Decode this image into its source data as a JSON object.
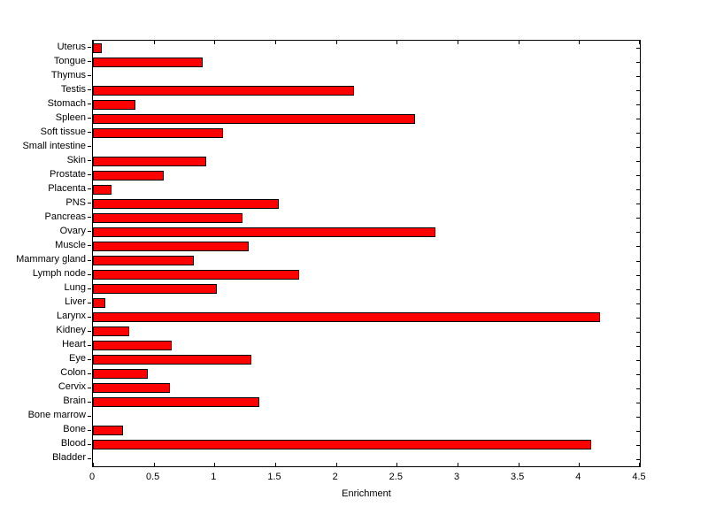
{
  "chart_data": {
    "type": "bar",
    "orientation": "horizontal",
    "title": "",
    "xlabel": "Enrichment",
    "ylabel": "",
    "xlim": [
      0,
      4.5
    ],
    "xticks": [
      0,
      0.5,
      1,
      1.5,
      2,
      2.5,
      3,
      3.5,
      4,
      4.5
    ],
    "xtick_labels": [
      "0",
      "0.5",
      "1",
      "1.5",
      "2",
      "2.5",
      "3",
      "3.5",
      "4",
      "4.5"
    ],
    "grid": false,
    "legend_position": "none",
    "bar_color": "#ff0000",
    "bar_edge_color": "#000000",
    "categories": [
      "Uterus",
      "Tongue",
      "Thymus",
      "Testis",
      "Stomach",
      "Spleen",
      "Soft tissue",
      "Small intestine",
      "Skin",
      "Prostate",
      "Placenta",
      "PNS",
      "Pancreas",
      "Ovary",
      "Muscle",
      "Mammary gland",
      "Lymph node",
      "Lung",
      "Liver",
      "Larynx",
      "Kidney",
      "Heart",
      "Eye",
      "Colon",
      "Cervix",
      "Brain",
      "Bone marrow",
      "Bone",
      "Blood",
      "Bladder"
    ],
    "values": [
      0.07,
      0.9,
      0,
      2.15,
      0.35,
      2.65,
      1.07,
      0,
      0.93,
      0.58,
      0.15,
      1.53,
      1.23,
      2.82,
      1.28,
      0.83,
      1.7,
      1.02,
      0.1,
      4.17,
      0.3,
      0.65,
      1.3,
      0.45,
      0.63,
      1.37,
      0,
      0.25,
      4.1,
      0
    ]
  }
}
